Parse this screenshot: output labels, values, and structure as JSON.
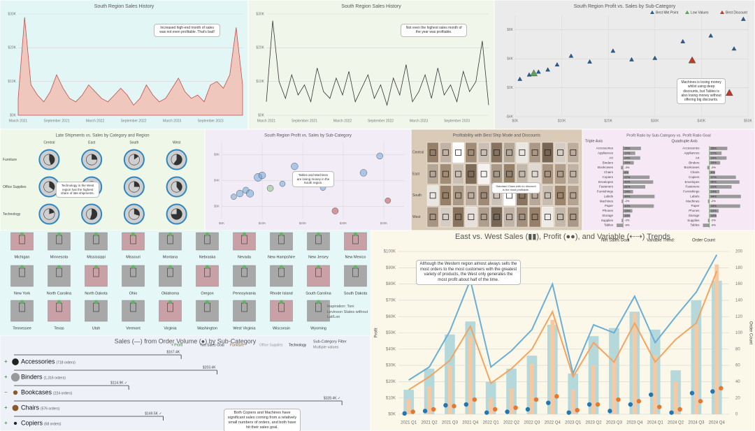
{
  "chart_data": [
    {
      "type": "area",
      "title": "South Region Sales History",
      "background": "#e3f6f6",
      "color": "#efc7bd",
      "stroke": "#c0504d",
      "categories": [
        "March 2021",
        null,
        null,
        null,
        null,
        null,
        "September 2021",
        null,
        null,
        null,
        null,
        null,
        "March 2022",
        null,
        null,
        null,
        null,
        null,
        "September 2022",
        null,
        null,
        null,
        null,
        null,
        "March 2023",
        null,
        null,
        null,
        null,
        null,
        "September 2023",
        null,
        null,
        null,
        null,
        null
      ],
      "values": [
        5000,
        29000,
        9000,
        6000,
        4000,
        7000,
        12000,
        8000,
        5000,
        4000,
        6000,
        9000,
        7000,
        5000,
        4000,
        6000,
        8000,
        6000,
        3000,
        5000,
        9000,
        6000,
        4000,
        5000,
        8000,
        11000,
        7000,
        5000,
        6000,
        4000,
        9000,
        10000,
        8000,
        12000,
        26000,
        9000
      ],
      "ylim": [
        0,
        30000
      ],
      "yticks": [
        {
          "value": 0,
          "label": "$0K"
        },
        {
          "value": 10000,
          "label": "$10K"
        },
        {
          "value": 20000,
          "label": "$20K"
        },
        {
          "value": 30000,
          "label": "$30K"
        }
      ],
      "annotation": "Increased high-end month of sales was not even profitable. That's bad!"
    },
    {
      "type": "line",
      "title": "South Region Sales History",
      "background": "#f1f6ea",
      "color": "#333333",
      "categories": [
        "March 2021",
        null,
        null,
        null,
        null,
        null,
        "September 2021",
        null,
        null,
        null,
        null,
        null,
        "March 2022",
        null,
        null,
        null,
        null,
        null,
        "September 2022",
        null,
        null,
        null,
        null,
        null,
        "March 2023",
        null,
        null,
        null,
        null,
        null,
        "September 2023",
        null,
        null,
        null,
        null,
        null
      ],
      "values": [
        4000,
        28000,
        10000,
        5000,
        12000,
        6000,
        9000,
        4000,
        14000,
        7000,
        5000,
        11000,
        6000,
        13000,
        4000,
        8000,
        12000,
        5000,
        9000,
        3000,
        11000,
        6000,
        15000,
        4000,
        7000,
        12000,
        5000,
        14000,
        6000,
        9000,
        4000,
        13000,
        7000,
        10000,
        22000,
        3000
      ],
      "ylim": [
        0,
        30000
      ],
      "yticks": [
        {
          "value": 0,
          "label": "$0K"
        },
        {
          "value": 10000,
          "label": "$10K"
        },
        {
          "value": 20000,
          "label": "$20K"
        },
        {
          "value": 30000,
          "label": "$30K"
        }
      ],
      "annotation": "Not even the highest sales month of the year was profitable."
    },
    {
      "type": "scatter",
      "title": "South Region Profit vs. Sales by Sub-Category",
      "background": "#ebebeb",
      "xlim": [
        0,
        50000
      ],
      "xticks": [
        {
          "value": 0,
          "label": "$0K"
        },
        {
          "value": 10000,
          "label": "$10K"
        },
        {
          "value": 20000,
          "label": "$20K"
        },
        {
          "value": 30000,
          "label": "$30K"
        },
        {
          "value": 40000,
          "label": "$40K"
        },
        {
          "value": 50000,
          "label": "$50K"
        }
      ],
      "ylim": [
        -4000,
        10000
      ],
      "yticks": [
        {
          "value": -4000,
          "label": "-$4K"
        },
        {
          "value": 0,
          "label": "$0K"
        },
        {
          "value": 4000,
          "label": "$4K"
        },
        {
          "value": 8000,
          "label": "$8K"
        }
      ],
      "series": [
        {
          "name": "Best Mkt Point",
          "color": "#1f5f9e",
          "x": [
            1000,
            3000,
            5000,
            7000,
            9000,
            12000,
            16000,
            21000,
            25000,
            30000,
            36000,
            42000,
            47000,
            49000
          ],
          "y": [
            1200,
            1800,
            2200,
            2500,
            3200,
            4400,
            3600,
            5100,
            3900,
            4100,
            6400,
            7200,
            5400,
            9500
          ]
        },
        {
          "name": "Low Values",
          "color": "#5aa55a",
          "x": [
            4000
          ],
          "y": [
            2000
          ]
        },
        {
          "name": "Best Discount",
          "color": "#c0392b",
          "x": [
            38000,
            46000
          ],
          "y": [
            3800,
            -700
          ]
        }
      ],
      "annotation": "Machines is losing money whilst using deep discounts, but Tables is also losing money without offering big discounts."
    },
    {
      "type": "donut-grid",
      "title": "Late Shipments vs. Sales by Category and Region",
      "background": "#eef7e8",
      "ring_color": "#2e86c1",
      "columns": [
        "Central",
        "East",
        "South",
        "West"
      ],
      "rows": [
        "Furniture",
        "Office Supplies",
        "Technology"
      ],
      "values": [
        [
          45,
          25,
          15,
          60
        ],
        [
          35,
          30,
          25,
          40
        ],
        [
          20,
          55,
          30,
          75
        ]
      ],
      "annotation": "Technology in the West region has the highest share of late shipments."
    },
    {
      "type": "bubble",
      "title": "South Region Profit vs. Sales by Sub-Category",
      "background": "#f2ecf7",
      "xlim": [
        0,
        45000
      ],
      "xticks": [
        {
          "value": 0,
          "label": "$0K"
        },
        {
          "value": 10000,
          "label": "$10K"
        },
        {
          "value": 20000,
          "label": "$20K"
        },
        {
          "value": 30000,
          "label": "$30K"
        },
        {
          "value": 40000,
          "label": "$40K"
        }
      ],
      "ylim": [
        -2000,
        10000
      ],
      "yticks": [
        {
          "value": 0,
          "label": "$0K"
        },
        {
          "value": 4000,
          "label": "$4K"
        },
        {
          "value": 8000,
          "label": "$8K"
        }
      ],
      "x": [
        3000,
        4500,
        6000,
        7000,
        9000,
        10000,
        12000,
        15000,
        18000,
        22000,
        25000,
        28000,
        35000,
        41000,
        39000
      ],
      "y": [
        1500,
        2000,
        2500,
        2000,
        4500,
        4800,
        2800,
        3500,
        6200,
        4100,
        2900,
        -700,
        5200,
        900,
        7800
      ],
      "size": [
        20,
        30,
        25,
        35,
        40,
        30,
        25,
        20,
        30,
        25,
        20,
        25,
        30,
        20,
        25
      ],
      "colors": [
        "#6fa8dc",
        "#6fa8dc",
        "#6fa8dc",
        "#6fa8dc",
        "#6fa8dc",
        "#6fa8dc",
        "#8fbf8f",
        "#6fa8dc",
        "#6fa8dc",
        "#6fa8dc",
        "#6fa8dc",
        "#c0504d",
        "#6fa8dc",
        "#c0504d",
        "#6fa8dc"
      ],
      "annotation": "Tables and Machines are losing money in the South region."
    },
    {
      "type": "heatmap",
      "title": "Profitability with Best Ship Mode and Discounts",
      "background": "#d9cbb8",
      "rows": [
        "Central",
        "East",
        "South",
        "West"
      ],
      "values": [
        [
          30,
          10,
          -20,
          25,
          5,
          35,
          15,
          -10,
          20,
          40,
          0,
          12
        ],
        [
          15,
          25,
          5,
          38,
          -15,
          20,
          30,
          8,
          -5,
          22,
          18,
          10
        ],
        [
          -10,
          30,
          20,
          12,
          26,
          4,
          -25,
          34,
          14,
          6,
          28,
          16
        ],
        [
          22,
          0,
          35,
          -8,
          18,
          40,
          10,
          24,
          30,
          -12,
          8,
          20
        ]
      ],
      "annotation": "Standard Class with no discount is the most profitable."
    },
    {
      "type": "hbar-split",
      "title": "Profit Ratio by Sub-Category vs. Profit Ratio Goal",
      "background": "#f7e8f6",
      "color": "#9a9a9a",
      "goal_color": "#5b9b5b",
      "categories": [
        "Accessories",
        "Appliances",
        "Art",
        "Binders",
        "Bookcases",
        "Chairs",
        "Copiers",
        "Envelopes",
        "Fasteners",
        "Furnishings",
        "Labels",
        "Machines",
        "Paper",
        "Phones",
        "Storage",
        "Supplies",
        "Tables"
      ],
      "xlim": [
        -10,
        50
      ],
      "series": [
        {
          "name": "Triple Axis",
          "values": [
            25,
            17,
            24,
            15,
            -3,
            8,
            37,
            42,
            31,
            14,
            44,
            -2,
            43,
            13,
            10,
            -2,
            -9
          ],
          "value_labels": [
            "25%",
            "17%",
            "24%",
            "15%",
            "-3%",
            "8%",
            "37%",
            "42%",
            "31%",
            "14%",
            "44%",
            "-2%",
            "43%",
            "13%",
            "10%",
            "-2%",
            "-9%"
          ]
        },
        {
          "name": "Quadruple Axis",
          "values": [
            25,
            17,
            24,
            15,
            -3,
            8,
            37,
            42,
            31,
            14,
            44,
            -2,
            43,
            13,
            10,
            -2,
            -9
          ],
          "value_labels": [
            "25%",
            "17%",
            "24%",
            "15%",
            "-3%",
            "8%",
            "37%",
            "42%",
            "31%",
            "14%",
            "44%",
            "-2%",
            "43%",
            "13%",
            "10%",
            "-2%",
            "-9%"
          ]
        }
      ]
    },
    {
      "type": "combo",
      "title": "East vs. West Sales (▮▮), Profit (●●), and Variable (⇠⇢) Trends",
      "background": "#fbf8e9",
      "legend": [
        "Net Sales Goal",
        "Variable Trend:",
        "Order Count"
      ],
      "categories": [
        "2021 Q1",
        "2021 Q2",
        "2021 Q3",
        "2021 Q4",
        "2022 Q1",
        "2022 Q2",
        "2022 Q3",
        "2022 Q4",
        "2023 Q1",
        "2023 Q2",
        "2023 Q3",
        "2023 Q4",
        "2024 Q1",
        "2024 Q2",
        "2024 Q3",
        "2024 Q4"
      ],
      "ylabel": "Profit",
      "y2label": "Order Count",
      "ylim": [
        0,
        100000
      ],
      "yticks": [
        {
          "value": 0,
          "label": "$0K"
        },
        {
          "value": 10000,
          "label": "$10K"
        },
        {
          "value": 20000,
          "label": "$20K"
        },
        {
          "value": 30000,
          "label": "$30K"
        },
        {
          "value": 40000,
          "label": "$40K"
        },
        {
          "value": 50000,
          "label": "$50K"
        },
        {
          "value": 60000,
          "label": "$60K"
        },
        {
          "value": 70000,
          "label": "$70K"
        },
        {
          "value": 80000,
          "label": "$80K"
        },
        {
          "value": 90000,
          "label": "$90K"
        },
        {
          "value": 100000,
          "label": "$100K"
        }
      ],
      "y2lim": [
        0,
        200
      ],
      "y2ticks": [
        0,
        20,
        40,
        60,
        80,
        100,
        120,
        140,
        160,
        180,
        200
      ],
      "series": [
        {
          "mark": "bar",
          "color": "#b5d9db",
          "values": [
            15000,
            28000,
            49000,
            57000,
            20000,
            28000,
            36000,
            55000,
            25000,
            48000,
            53000,
            63000,
            52000,
            27000,
            70000,
            82000
          ]
        },
        {
          "mark": "bar",
          "color": "#f7c9a3",
          "values": [
            9000,
            17000,
            30000,
            48000,
            10000,
            16000,
            31000,
            58000,
            15000,
            30000,
            33000,
            62000,
            36000,
            20000,
            55000,
            92000
          ]
        },
        {
          "mark": "line",
          "axis": "y2",
          "color": "#6aaed6",
          "values": [
            42,
            58,
            102,
            165,
            58,
            78,
            104,
            160,
            50,
            110,
            100,
            145,
            88,
            120,
            150,
            196
          ]
        },
        {
          "mark": "line",
          "axis": "y2",
          "color": "#f4a460",
          "values": [
            30,
            46,
            66,
            108,
            38,
            56,
            80,
            126,
            46,
            88,
            64,
            112,
            64,
            92,
            112,
            176
          ]
        },
        {
          "mark": "dot",
          "color": "#1f77b4",
          "values": [
            500,
            2000,
            5500,
            6000,
            1000,
            1500,
            3000,
            7000,
            1000,
            6000,
            2000,
            6000,
            12000,
            1000,
            13000,
            14000
          ]
        },
        {
          "mark": "dot",
          "color": "#e8762c",
          "values": [
            1500,
            3000,
            5000,
            9000,
            3000,
            4000,
            9000,
            11000,
            2500,
            6000,
            9000,
            8000,
            4500,
            3000,
            8000,
            16000
          ]
        }
      ],
      "annotation": "Although the Western region almost always sells the most orders to the most customers with the greatest variety of products, the West only generates the most profit about half of the time."
    },
    {
      "type": "lollipop",
      "title": "Sales (—) from Order Volume (●) by Sub-Category",
      "background": "#eef2f8",
      "legend": [
        "+ Profit",
        "Net Sales Goal",
        "Furniture",
        "Office Supplies",
        "Technology"
      ],
      "legend_colors": [
        "#2a7a2a",
        "#333333",
        "#8b5a2b",
        "#999999",
        "#222222"
      ],
      "filter_title": "Sub-Category Filter",
      "filter_value": "Multiple values",
      "categories": [
        "Accessories",
        "Binders",
        "Bookcases",
        "Chairs",
        "Copiers"
      ],
      "status": [
        "+",
        "+",
        "−",
        "+",
        "+"
      ],
      "status_colors": [
        "#2a7a2a",
        "#2a7a2a",
        "#c0392b",
        "#2a7a2a",
        "#2a7a2a"
      ],
      "colors": [
        "#222222",
        "#999999",
        "#8b5a2b",
        "#8b5a2b",
        "#222222"
      ],
      "orders": [
        718,
        1316,
        224,
        576,
        68
      ],
      "order_labels": [
        "(718 orders)",
        "(1,316 orders)",
        "(224 orders)",
        "(576 orders)",
        "(68 orders)"
      ],
      "xlim": [
        0,
        350000
      ],
      "values": [
        167400,
        203400,
        114900,
        328400,
        149500
      ],
      "value_labels": [
        "$167.4K",
        "$203.4K",
        "$114.9K ✓",
        "$328.4K ✓",
        "$149.5K ✓"
      ],
      "annotation": "Both Copiers and Machines have significant sales coming from a relatively small numbers of orders, and both have hit their sales goal."
    }
  ],
  "state_maps": {
    "background": "#e6f7f7",
    "states": [
      "Michigan",
      "Minnesota",
      "Mississippi",
      "Missouri",
      "Montana",
      "Nebraska",
      "Nevada",
      "New Hampshire",
      "New Jersey",
      "New Mexico",
      "New York",
      "North Carolina",
      "North Dakota",
      "Ohio",
      "Oklahoma",
      "Oregon",
      "Pennsylvania",
      "Rhode Island",
      "South Carolina",
      "South Dakota",
      "Tennessee",
      "Texas",
      "Utah",
      "Vermont",
      "Virginia",
      "Washington",
      "West Virginia",
      "Wisconsin",
      "Wyoming"
    ],
    "note": "Inspiration: Toni Levinson States without Lat/Lon"
  }
}
